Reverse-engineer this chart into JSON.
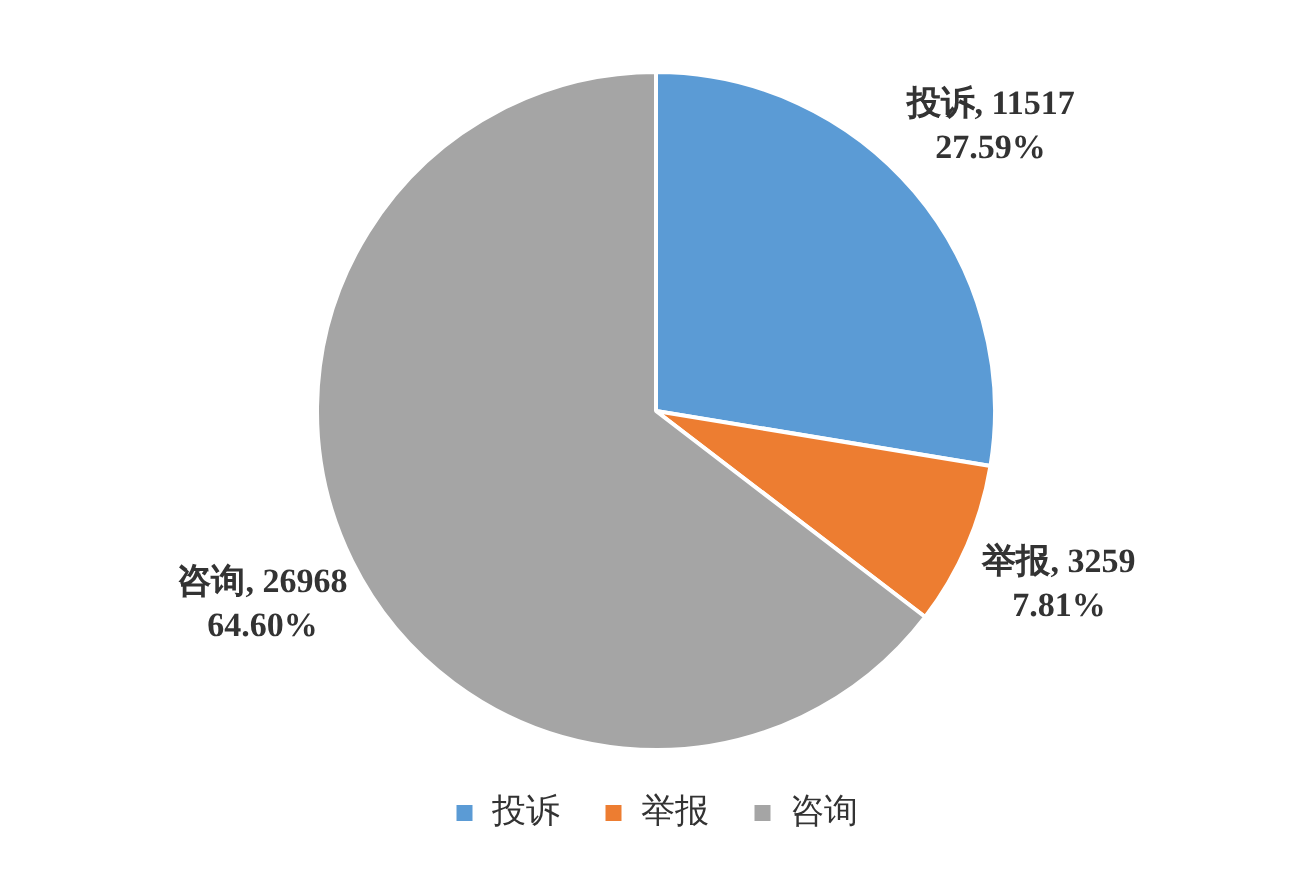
{
  "chart_data": {
    "type": "pie",
    "categories": [
      "投诉",
      "举报",
      "咨询"
    ],
    "values": [
      11517,
      3259,
      26968
    ],
    "colors": [
      "#5b9bd5",
      "#ed7d31",
      "#a5a5a5"
    ],
    "value_labels": [
      "投诉, 11517\n27.59%",
      "举报, 3259\n7.81%",
      "咨询, 26968\n64.60%"
    ],
    "legend": "bottom"
  }
}
